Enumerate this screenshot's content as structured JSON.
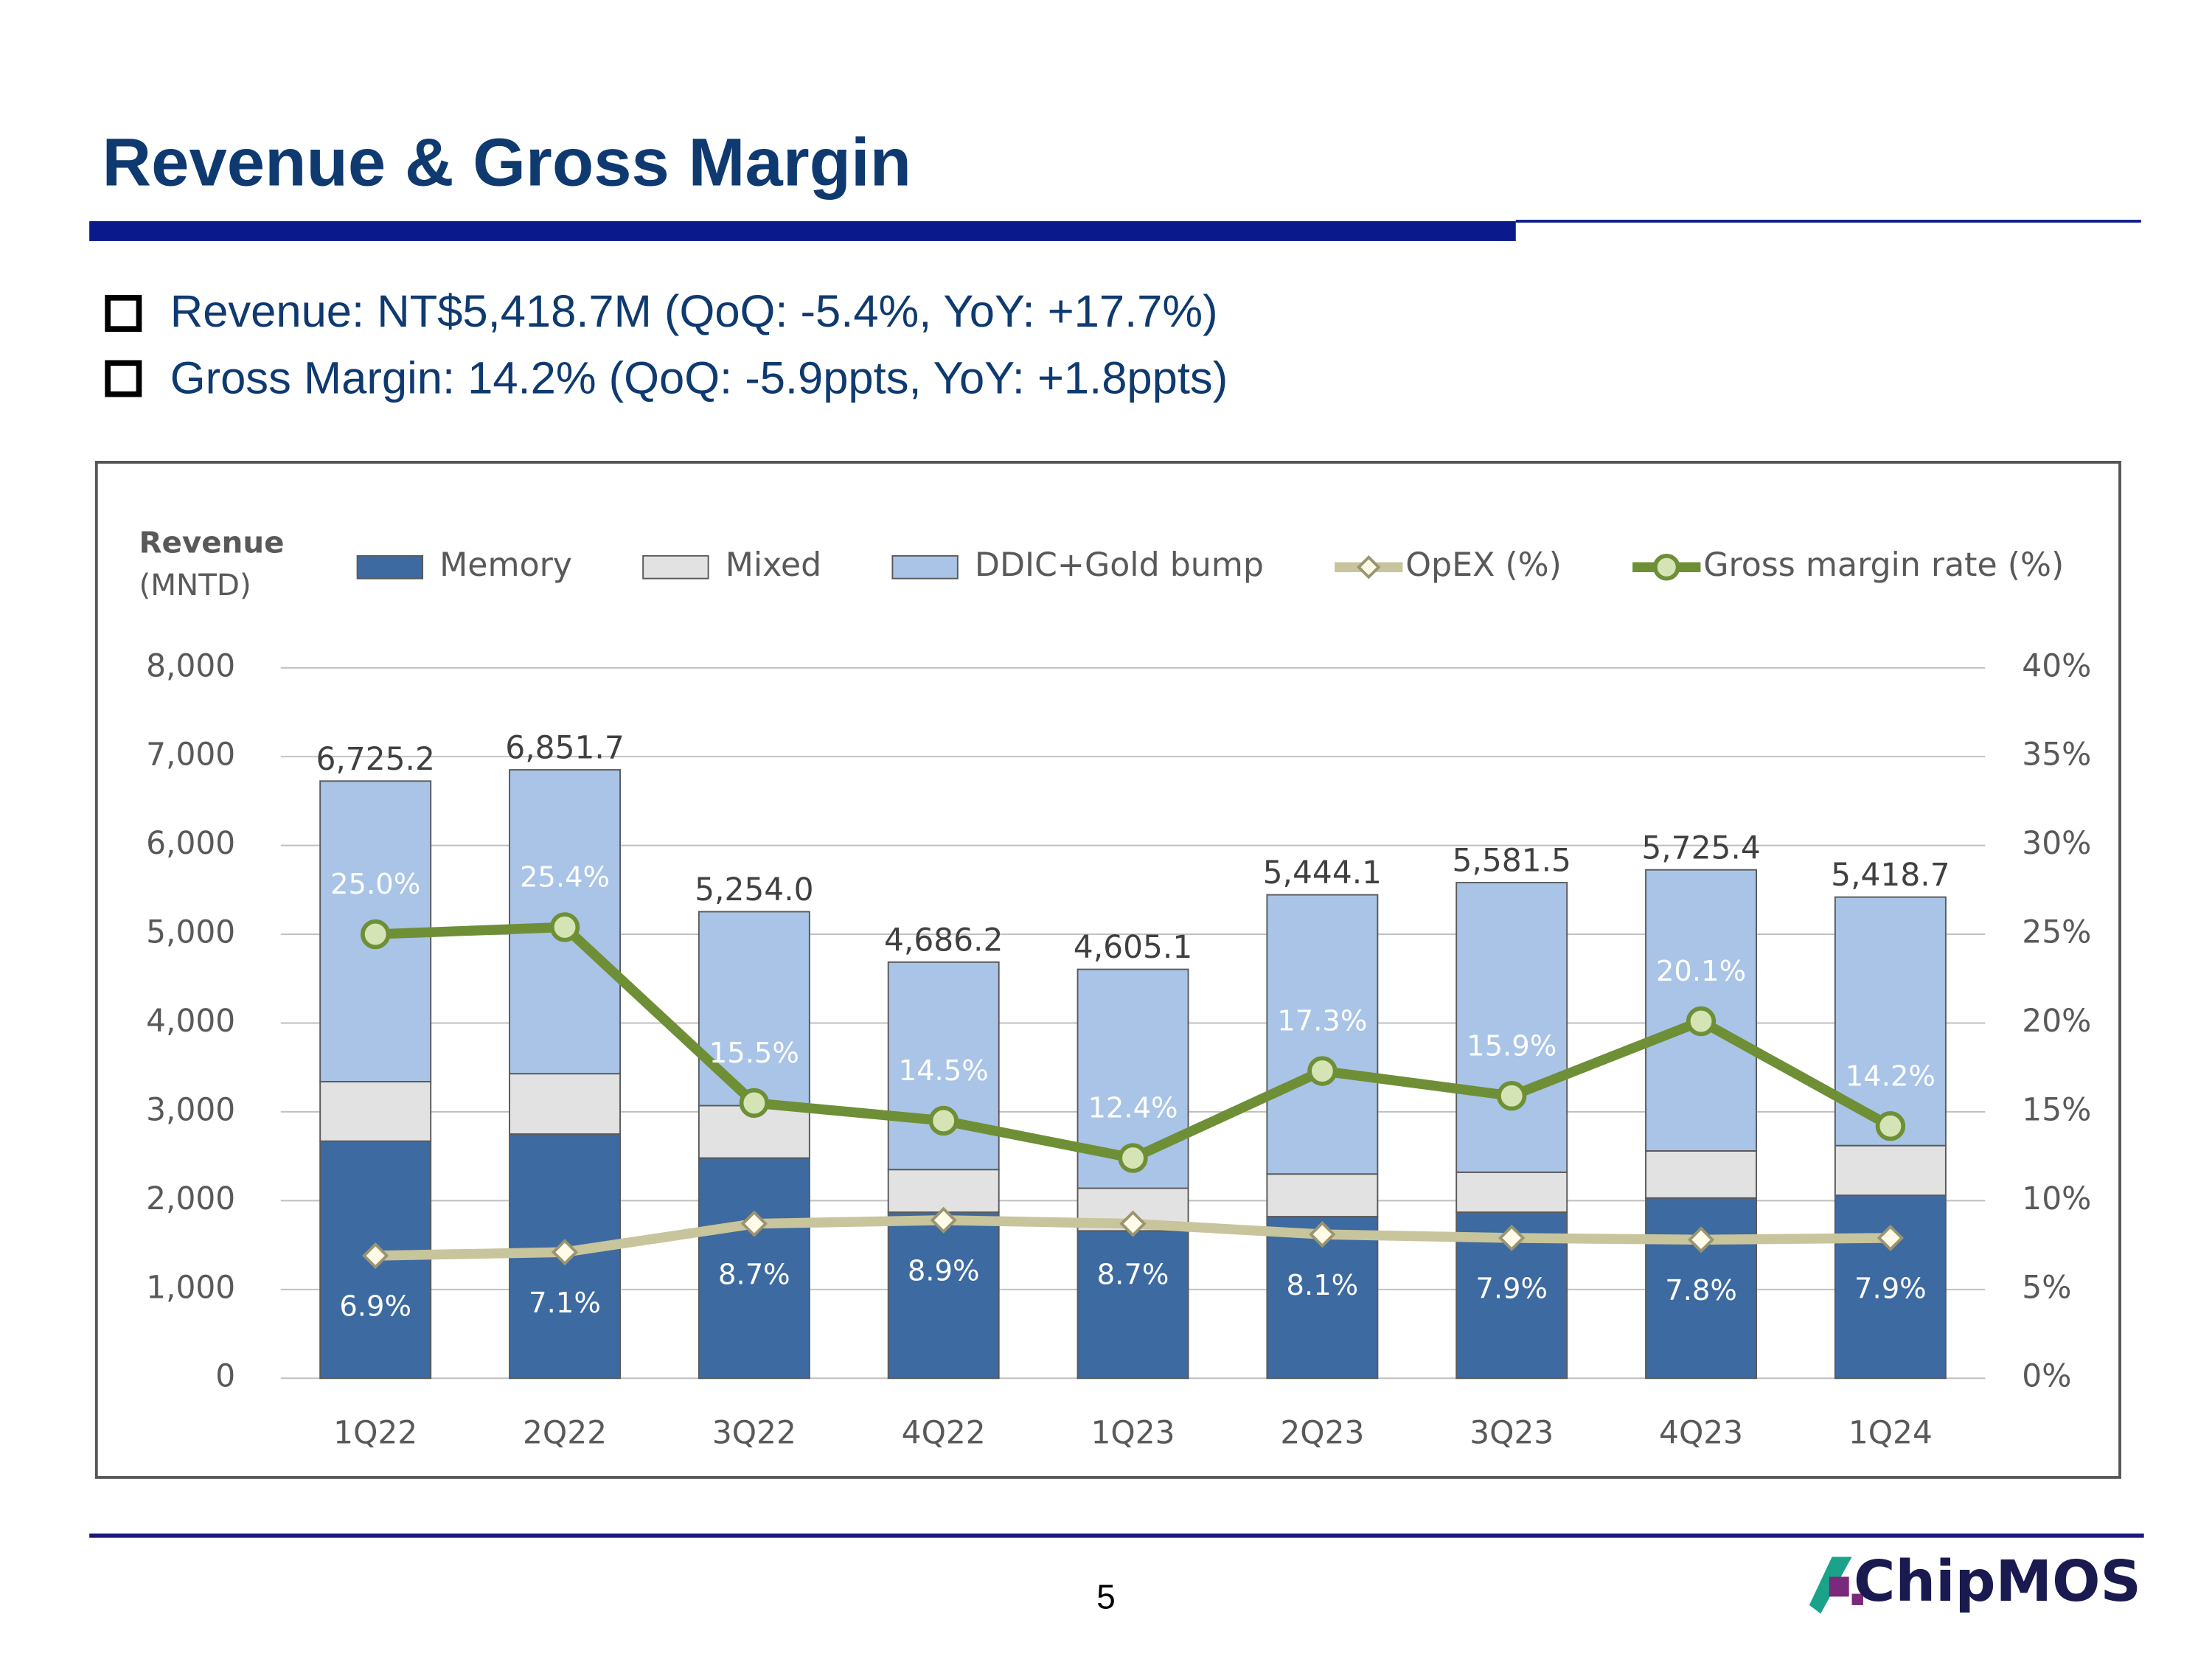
{
  "header": {
    "title": "Revenue & Gross Margin",
    "bullets": [
      "Revenue: NT$5,418.7M (QoQ: -5.4%, YoY: +17.7%)",
      "Gross Margin: 14.2% (QoQ: -5.9ppts, YoY: +1.8ppts)"
    ]
  },
  "footer": {
    "page": "5",
    "logo": "ChipMOS"
  },
  "chart_data": {
    "type": "bar",
    "stacked": true,
    "y_label": [
      "Revenue",
      "(MNTD)"
    ],
    "categories": [
      "1Q22",
      "2Q22",
      "3Q22",
      "4Q22",
      "1Q23",
      "2Q23",
      "3Q23",
      "4Q23",
      "1Q24"
    ],
    "series": [
      {
        "name": "Memory",
        "color": "#3d6aa0",
        "values": [
          2670,
          2750,
          2480,
          1870,
          1660,
          1820,
          1870,
          2030,
          2060
        ]
      },
      {
        "name": "Mixed",
        "color": "#e2e2e2",
        "values": [
          670,
          680,
          590,
          480,
          480,
          480,
          450,
          530,
          560
        ]
      },
      {
        "name": "DDIC+Gold bump",
        "color": "#a9c4e6",
        "values": [
          3385.2,
          3421.7,
          2184,
          2336.2,
          2465.1,
          3144.1,
          3261.5,
          3165.4,
          2798.7
        ]
      },
      {
        "name": "OpEX (%)",
        "type": "line",
        "axis": "y2",
        "color": "#c8c49c",
        "values": [
          6.9,
          7.1,
          8.7,
          8.9,
          8.7,
          8.1,
          7.9,
          7.8,
          7.9
        ],
        "value_labels": [
          "6.9%",
          "7.1%",
          "8.7%",
          "8.9%",
          "8.7%",
          "8.1%",
          "7.9%",
          "7.8%",
          "7.9%"
        ]
      },
      {
        "name": "Gross margin rate (%)",
        "type": "line",
        "axis": "y2",
        "color": "#6e8f36",
        "values": [
          25.0,
          25.4,
          15.5,
          14.5,
          12.4,
          17.3,
          15.9,
          20.1,
          14.2
        ],
        "value_labels": [
          "25.0%",
          "25.4%",
          "15.5%",
          "14.5%",
          "12.4%",
          "17.3%",
          "15.9%",
          "20.1%",
          "14.2%"
        ]
      }
    ],
    "totals": {
      "values": [
        6725.2,
        6851.7,
        5254.0,
        4686.2,
        4605.1,
        5444.1,
        5581.5,
        5725.4,
        5418.7
      ],
      "value_labels": [
        "6,725.2",
        "6,851.7",
        "5,254.0",
        "4,686.2",
        "4,605.1",
        "5,444.1",
        "5,581.5",
        "5,725.4",
        "5,418.7"
      ]
    },
    "ylim": [
      0,
      8000
    ],
    "yticks": [
      0,
      {
        "value": 1000,
        "label": "1,000"
      },
      {
        "value": 2000,
        "label": "2,000"
      },
      {
        "value": 3000,
        "label": "3,000"
      },
      {
        "value": 4000,
        "label": "4,000"
      },
      {
        "value": 5000,
        "label": "5,000"
      },
      {
        "value": 6000,
        "label": "6,000"
      },
      {
        "value": 7000,
        "label": "7,000"
      },
      {
        "value": 8000,
        "label": "8,000"
      }
    ],
    "y2lim": [
      0,
      40
    ],
    "y2ticks": [
      {
        "value": 0,
        "label": "0%"
      },
      {
        "value": 5,
        "label": "5%"
      },
      {
        "value": 10,
        "label": "10%"
      },
      {
        "value": 15,
        "label": "15%"
      },
      {
        "value": 20,
        "label": "20%"
      },
      {
        "value": 25,
        "label": "25%"
      },
      {
        "value": 30,
        "label": "30%"
      },
      {
        "value": 35,
        "label": "35%"
      },
      {
        "value": 40,
        "label": "40%"
      }
    ],
    "grid": true
  }
}
